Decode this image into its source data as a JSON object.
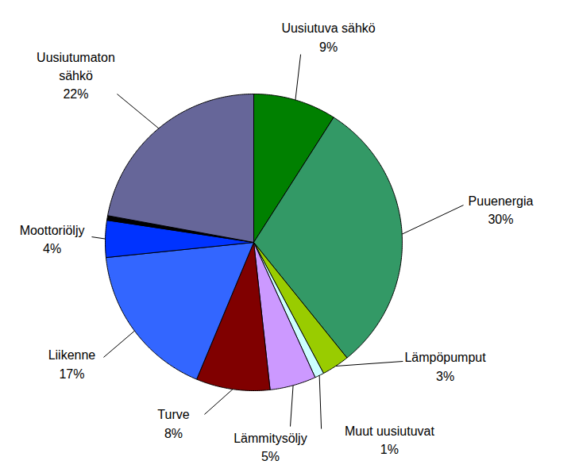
{
  "chart_data": {
    "type": "pie",
    "categories": [
      "Uusiutuva sähkö",
      "Puuenergia",
      "Lämpöpumput",
      "Muut uusiutuvat",
      "Lämmitysöljy",
      "Turve",
      "Liikenne",
      "Moottoriöljy",
      null,
      "Uusiutumaton sähkö"
    ],
    "values": [
      9,
      30,
      3,
      1,
      5,
      8,
      17,
      4,
      0.5,
      22
    ],
    "value_labels": [
      "9%",
      "30%",
      "3%",
      "1%",
      "5%",
      "8%",
      "17%",
      "4%",
      null,
      "22%"
    ],
    "colors": [
      "#008000",
      "#339966",
      "#99cc00",
      "#ccffff",
      "#cc99ff",
      "#800000",
      "#3366ff",
      "#0033ff",
      "#000000",
      "#666699"
    ],
    "data_labels": true,
    "tick_labels": false
  }
}
